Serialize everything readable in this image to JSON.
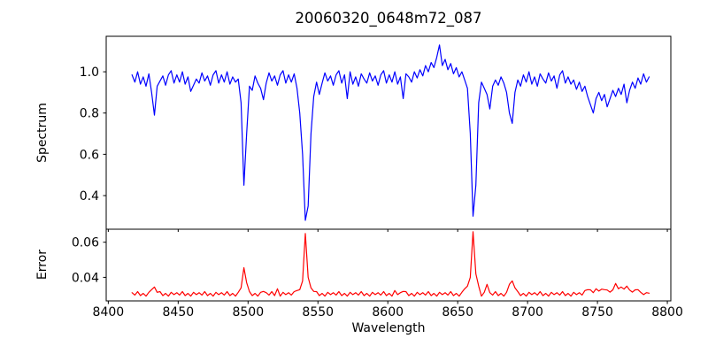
{
  "figure": {
    "background_color": "#ffffff",
    "text_color": "#000000"
  },
  "chart_data": {
    "type": "line",
    "title": "20060320_0648m72_087",
    "xlabel": "Wavelength",
    "grid": false,
    "legend": "none",
    "x_start": 8417,
    "x_step": 2,
    "n_points": 186,
    "xlim": [
      8398.5,
      8802.5
    ],
    "xticks": [
      8400,
      8450,
      8500,
      8550,
      8600,
      8650,
      8700,
      8750,
      8800
    ],
    "xtick_labels": [
      "8400",
      "8450",
      "8500",
      "8550",
      "8600",
      "8650",
      "8700",
      "8750",
      "8800"
    ],
    "spine_color": "#000000",
    "text_color": "#000000",
    "panels": [
      {
        "name": "spectrum",
        "ylabel": "Spectrum",
        "color": "#0000ff",
        "ylim": [
          0.237,
          1.172
        ],
        "yticks": [
          0.4,
          0.6,
          0.8,
          1.0
        ],
        "ytick_labels": [
          "0.4",
          "0.6",
          "0.8",
          "1.0"
        ],
        "values": [
          0.985,
          0.95,
          1.0,
          0.94,
          0.975,
          0.93,
          0.99,
          0.9,
          0.79,
          0.93,
          0.955,
          0.98,
          0.935,
          0.985,
          1.005,
          0.945,
          0.985,
          0.95,
          1.0,
          0.94,
          0.975,
          0.905,
          0.935,
          0.965,
          0.945,
          0.995,
          0.955,
          0.98,
          0.935,
          0.985,
          1.005,
          0.945,
          0.985,
          0.95,
          1.0,
          0.94,
          0.975,
          0.95,
          0.965,
          0.85,
          0.45,
          0.7,
          0.93,
          0.91,
          0.98,
          0.945,
          0.92,
          0.865,
          0.945,
          0.995,
          0.955,
          0.98,
          0.935,
          0.985,
          1.005,
          0.945,
          0.985,
          0.95,
          0.99,
          0.92,
          0.8,
          0.6,
          0.28,
          0.35,
          0.7,
          0.88,
          0.95,
          0.89,
          0.945,
          0.995,
          0.955,
          0.98,
          0.935,
          0.985,
          1.005,
          0.945,
          0.985,
          0.87,
          1.0,
          0.94,
          0.975,
          0.93,
          0.99,
          0.965,
          0.945,
          0.995,
          0.955,
          0.98,
          0.935,
          0.985,
          1.005,
          0.945,
          0.985,
          0.95,
          1.0,
          0.94,
          0.975,
          0.87,
          0.99,
          0.975,
          0.95,
          1.0,
          0.97,
          1.01,
          0.98,
          1.03,
          1.0,
          1.045,
          1.02,
          1.07,
          1.13,
          1.03,
          1.06,
          1.01,
          1.04,
          0.99,
          1.02,
          0.975,
          1.0,
          0.96,
          0.92,
          0.7,
          0.3,
          0.45,
          0.85,
          0.95,
          0.92,
          0.89,
          0.82,
          0.93,
          0.96,
          0.935,
          0.975,
          0.945,
          0.9,
          0.8,
          0.75,
          0.9,
          0.96,
          0.93,
          0.985,
          0.95,
          1.0,
          0.94,
          0.975,
          0.93,
          0.99,
          0.965,
          0.945,
          0.995,
          0.955,
          0.98,
          0.92,
          0.985,
          1.005,
          0.945,
          0.975,
          0.94,
          0.96,
          0.915,
          0.95,
          0.905,
          0.93,
          0.88,
          0.84,
          0.8,
          0.87,
          0.9,
          0.86,
          0.89,
          0.83,
          0.87,
          0.91,
          0.88,
          0.92,
          0.89,
          0.94,
          0.85,
          0.91,
          0.95,
          0.92,
          0.97,
          0.94,
          0.99,
          0.95,
          0.975
        ]
      },
      {
        "name": "error",
        "ylabel": "Error",
        "color": "#ff0000",
        "ylim": [
          0.0266,
          0.0674
        ],
        "yticks": [
          0.04,
          0.06
        ],
        "ytick_labels": [
          "0.04",
          "0.06"
        ],
        "values": [
          0.0313,
          0.0299,
          0.0319,
          0.0296,
          0.0309,
          0.0293,
          0.0315,
          0.033,
          0.0345,
          0.0315,
          0.0319,
          0.0296,
          0.0309,
          0.0293,
          0.0315,
          0.0302,
          0.0313,
          0.0299,
          0.0319,
          0.0296,
          0.0309,
          0.0293,
          0.0315,
          0.0302,
          0.0313,
          0.0299,
          0.0319,
          0.0296,
          0.0309,
          0.0293,
          0.0315,
          0.0302,
          0.0313,
          0.0299,
          0.0319,
          0.0296,
          0.0309,
          0.0293,
          0.0315,
          0.034,
          0.0455,
          0.037,
          0.0319,
          0.0296,
          0.0309,
          0.0293,
          0.0315,
          0.032,
          0.0313,
          0.0299,
          0.0319,
          0.0296,
          0.0335,
          0.0293,
          0.0315,
          0.0302,
          0.0313,
          0.0299,
          0.0319,
          0.0325,
          0.033,
          0.038,
          0.065,
          0.04,
          0.034,
          0.032,
          0.0319,
          0.0296,
          0.0309,
          0.0293,
          0.0315,
          0.0302,
          0.0313,
          0.0299,
          0.0319,
          0.0296,
          0.0309,
          0.0293,
          0.0315,
          0.0302,
          0.0313,
          0.0299,
          0.0319,
          0.0296,
          0.0309,
          0.0293,
          0.0315,
          0.0302,
          0.0313,
          0.0299,
          0.0319,
          0.0296,
          0.0309,
          0.0293,
          0.0325,
          0.0302,
          0.0313,
          0.032,
          0.0319,
          0.0296,
          0.0309,
          0.0293,
          0.0315,
          0.0302,
          0.0313,
          0.0299,
          0.0319,
          0.0296,
          0.0309,
          0.0293,
          0.0315,
          0.0302,
          0.0313,
          0.0299,
          0.0319,
          0.0296,
          0.0309,
          0.0293,
          0.0315,
          0.0335,
          0.035,
          0.04,
          0.066,
          0.042,
          0.035,
          0.0293,
          0.0315,
          0.036,
          0.0313,
          0.0299,
          0.0319,
          0.0296,
          0.0309,
          0.0293,
          0.0315,
          0.036,
          0.038,
          0.034,
          0.0319,
          0.0296,
          0.0309,
          0.0293,
          0.0315,
          0.0302,
          0.0313,
          0.0299,
          0.0319,
          0.0296,
          0.0309,
          0.0293,
          0.0315,
          0.0302,
          0.0313,
          0.0299,
          0.0319,
          0.0296,
          0.0309,
          0.0293,
          0.0315,
          0.0302,
          0.0313,
          0.0299,
          0.0325,
          0.033,
          0.0329,
          0.0313,
          0.0335,
          0.0322,
          0.0333,
          0.033,
          0.0328,
          0.0316,
          0.0329,
          0.0365,
          0.0335,
          0.0345,
          0.0333,
          0.035,
          0.0328,
          0.0316,
          0.0329,
          0.033,
          0.0315,
          0.0302,
          0.0313,
          0.031
        ]
      }
    ]
  }
}
